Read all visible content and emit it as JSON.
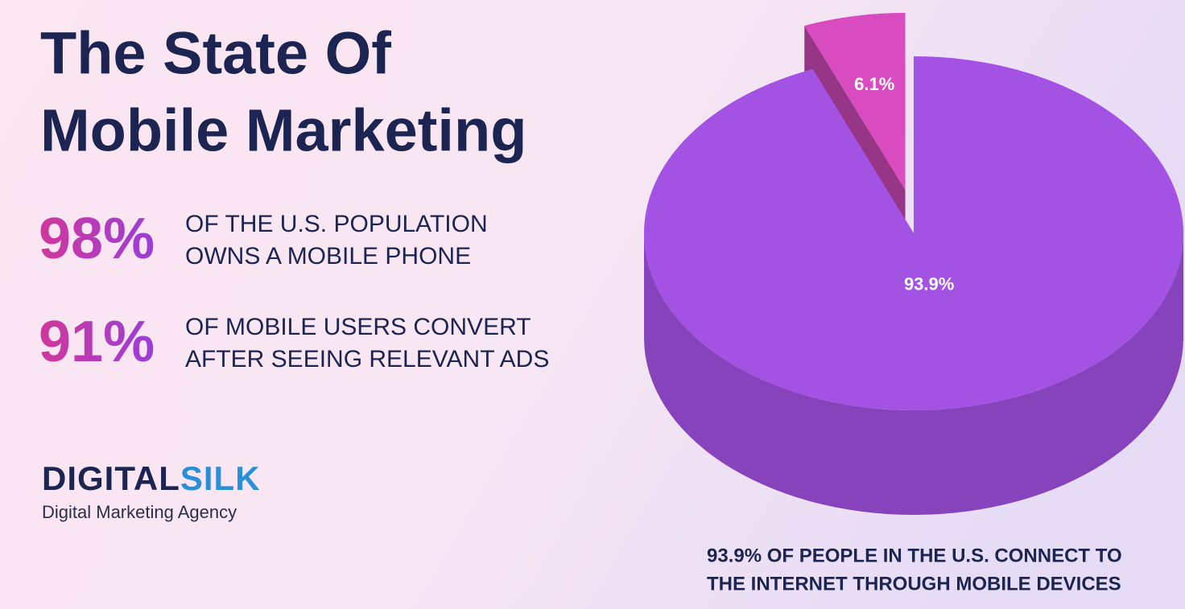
{
  "header": {
    "title": [
      "The State Of",
      "Mobile Marketing"
    ]
  },
  "stats": [
    {
      "figure": "98%",
      "text": [
        "OF THE U.S. POPULATION",
        "OWNS A MOBILE PHONE"
      ]
    },
    {
      "figure": "91%",
      "text": [
        "OF MOBILE USERS CONVERT",
        "AFTER SEEING RELEVANT ADS"
      ]
    }
  ],
  "brand": {
    "name_a": "DIGITAL",
    "name_b": "SILK",
    "tagline": "Digital Marketing Agency"
  },
  "chart_data": {
    "type": "pie",
    "values": [
      93.9,
      6.1
    ],
    "value_labels": [
      "93.9%",
      "6.1%"
    ],
    "colors": [
      "#a352e4",
      "#d84cbf"
    ],
    "exploded": [
      false,
      true
    ],
    "caption": [
      "93.9% OF PEOPLE IN THE U.S. CONNECT TO",
      "THE INTERNET THROUGH MOBILE DEVICES"
    ]
  }
}
